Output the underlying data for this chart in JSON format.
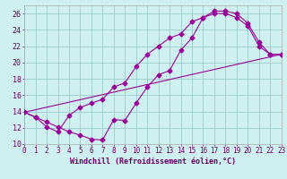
{
  "xlabel": "Windchill (Refroidissement éolien,°C)",
  "bg_color": "#cff0f0",
  "grid_color": "#99cccc",
  "line_color": "#990099",
  "x_min": 0,
  "x_max": 23,
  "y_min": 10,
  "y_max": 27,
  "line1_x": [
    0,
    1,
    2,
    3,
    4,
    5,
    6,
    7,
    8,
    9,
    10,
    11,
    12,
    13,
    14,
    15,
    16,
    17,
    18,
    19,
    20,
    21,
    22,
    23
  ],
  "line1_y": [
    13.9,
    13.3,
    12.7,
    12.1,
    11.5,
    11.1,
    10.6,
    10.5,
    13.0,
    12.9,
    15.0,
    17.0,
    18.5,
    19.0,
    21.5,
    23.0,
    25.5,
    26.3,
    26.3,
    26.0,
    24.8,
    22.5,
    21.0,
    21.0
  ],
  "line2_x": [
    0,
    1,
    2,
    3,
    4,
    5,
    6,
    7,
    8,
    9,
    10,
    11,
    12,
    13,
    14,
    15,
    16,
    17,
    18,
    19,
    20,
    21,
    22,
    23
  ],
  "line2_y": [
    13.9,
    13.3,
    12.1,
    11.5,
    13.5,
    14.5,
    15.0,
    15.5,
    17.0,
    17.5,
    19.5,
    21.0,
    22.0,
    23.0,
    23.5,
    25.0,
    25.5,
    26.0,
    26.0,
    25.5,
    24.5,
    22.0,
    21.0,
    21.0
  ],
  "line3_x": [
    0,
    23
  ],
  "line3_y": [
    13.9,
    21.0
  ],
  "yticks": [
    10,
    12,
    14,
    16,
    18,
    20,
    22,
    24,
    26
  ],
  "xticks": [
    0,
    1,
    2,
    3,
    4,
    5,
    6,
    7,
    8,
    9,
    10,
    11,
    12,
    13,
    14,
    15,
    16,
    17,
    18,
    19,
    20,
    21,
    22,
    23
  ],
  "xlabel_fontsize": 6.0,
  "tick_fontsize": 5.5,
  "ytick_fontsize": 6.0
}
